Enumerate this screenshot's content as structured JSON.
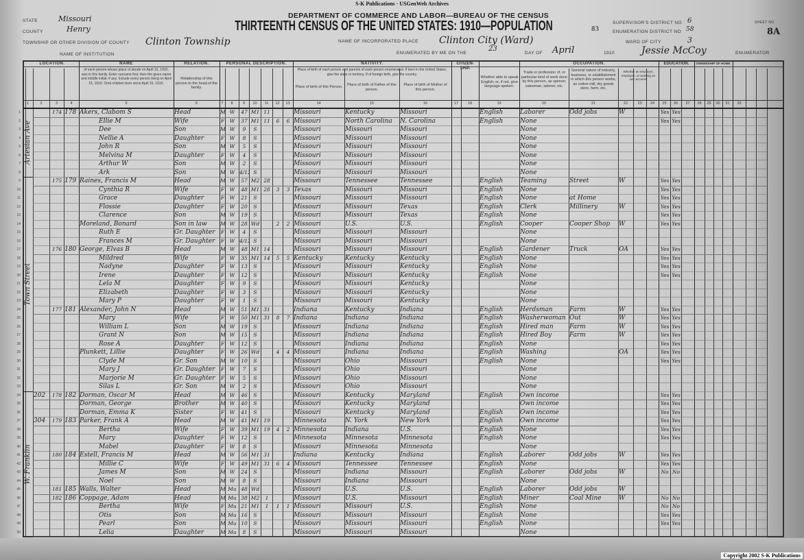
{
  "banner": "S-K Publications  ·  USGenWeb Archives",
  "form": {
    "department": "DEPARTMENT OF COMMERCE AND LABOR—BUREAU OF THE CENSUS",
    "title": "THIRTEENTH CENSUS OF THE UNITED STATES: 1910—POPULATION",
    "state_label": "STATE",
    "state": "Missouri",
    "county_label": "COUNTY",
    "county": "Henry",
    "township_label": "TOWNSHIP OR OTHER DIVISION OF COUNTY",
    "township": "Clinton Township",
    "institution_label": "NAME OF INSTITUTION",
    "incorporated_label": "NAME OF INCORPORATED PLACE",
    "incorporated_place": "Clinton City (Ward)",
    "supervisor_label": "SUPERVISOR'S DISTRICT NO",
    "supervisor_district": "6",
    "enumeration_label": "ENUMERATION DISTRICT NO",
    "enumeration_district": "58",
    "printed_code": "83",
    "sheet_label": "SHEET NO",
    "sheet": "8A",
    "ward_label": "WARD OF CITY",
    "ward": "3",
    "enumerated_label": "ENUMERATED BY ME ON THE",
    "day": "23",
    "day_of_label": "DAY OF",
    "month": "April",
    "year": "1910",
    "enumerator": "Jessie McCoy",
    "enumerator_label": "ENUMERATOR"
  },
  "header_groups": {
    "location": "LOCATION.",
    "name": "NAME",
    "name_desc": "of each person whose place of abode on April 15, 1910, was in this family. Enter surname first, then the given name and middle initial, if any. Include every person living on April 15, 1910. Omit children born since April 15, 1910.",
    "relation": "RELATION.",
    "relation_desc": "Relationship of this person to the head of the family.",
    "personal": "PERSONAL DESCRIPTION.",
    "nativity": "NATIVITY.",
    "nativity_desc": "Place of birth of each person and parents of each person enumerated. If born in the United States, give the state or territory. If of foreign birth, give the country.",
    "bp_person": "Place of birth of this Person.",
    "bp_father": "Place of birth of Father of this person.",
    "bp_mother": "Place of birth of Mother of this person.",
    "citizenship": "CITIZEN-SHIP.",
    "language": "Whether able to speak English; or, if not, give language spoken.",
    "occupation": "OCCUPATION.",
    "trade": "Trade or profession of, or particular kind of work done by this person, as spinner, salesman, laborer, etc.",
    "industry": "General nature of industry, business, or establishment in which this person works, as cotton mill, dry goods store, farm, etc.",
    "employer": "Whether an employer, employee, or working on own account.",
    "education": "EDUCATION.",
    "home": "OWNERSHIP OF HOME."
  },
  "column_numbers": [
    "1",
    "2",
    "3",
    "4",
    "5",
    "6",
    "7",
    "8",
    "9",
    "10",
    "11",
    "12",
    "13",
    "14",
    "15",
    "16",
    "17",
    "18",
    "19",
    "20",
    "21",
    "22",
    "23",
    "24",
    "25",
    "26",
    "27",
    "28",
    "29",
    "30",
    "31",
    "32"
  ],
  "street_labels": [
    "Artesian Ave",
    "Town Street",
    "W. Franklin"
  ],
  "rows": [
    [
      "",
      "174",
      "178",
      "Akers, Clabom S",
      "Head",
      "M",
      "W",
      "47",
      "M1",
      "11",
      "",
      "",
      "Missouri",
      "Kentucky",
      "Missouri",
      "English",
      "Laborer",
      "Odd jobs",
      "W",
      "Yes"
    ],
    [
      "",
      "",
      "",
      "Ellie M",
      "Wife",
      "F",
      "W",
      "37",
      "M1",
      "11",
      "6",
      "6",
      "Missouri",
      "North Carolina",
      "N. Carolina",
      "English",
      "None",
      "",
      "",
      "Yes"
    ],
    [
      "",
      "",
      "",
      "Dee",
      "Son",
      "M",
      "W",
      "9",
      "S",
      "",
      "",
      "",
      "Missouri",
      "Missouri",
      "Missouri",
      "",
      "None",
      "",
      "",
      ""
    ],
    [
      "",
      "",
      "",
      "Nellie A",
      "Daughter",
      "F",
      "W",
      "8",
      "S",
      "",
      "",
      "",
      "Missouri",
      "Missouri",
      "Missouri",
      "",
      "None",
      "",
      "",
      ""
    ],
    [
      "",
      "",
      "",
      "John R",
      "Son",
      "M",
      "W",
      "5",
      "S",
      "",
      "",
      "",
      "Missouri",
      "Missouri",
      "Missouri",
      "",
      "None",
      "",
      "",
      ""
    ],
    [
      "",
      "",
      "",
      "Melvina M",
      "Daughter",
      "F",
      "W",
      "4",
      "S",
      "",
      "",
      "",
      "Missouri",
      "Missouri",
      "Missouri",
      "",
      "None",
      "",
      "",
      ""
    ],
    [
      "",
      "",
      "",
      "Arthur W",
      "Son",
      "M",
      "W",
      "2",
      "S",
      "",
      "",
      "",
      "Missouri",
      "Missouri",
      "Missouri",
      "",
      "None",
      "",
      "",
      ""
    ],
    [
      "",
      "",
      "",
      "Ark",
      "Son",
      "M",
      "W",
      "4/12",
      "S",
      "",
      "",
      "",
      "Missouri",
      "Missouri",
      "Missouri",
      "",
      "None",
      "",
      "",
      ""
    ],
    [
      "",
      "175",
      "179",
      "Raines, Francis M",
      "Head",
      "M",
      "W",
      "57",
      "M2",
      "28",
      "",
      "",
      "Missouri",
      "Tennessee",
      "Tennessee",
      "English",
      "Teaming",
      "Street",
      "W",
      "Yes"
    ],
    [
      "",
      "",
      "",
      "Cynthia R",
      "Wife",
      "F",
      "W",
      "48",
      "M1",
      "28",
      "3",
      "3",
      "Texas",
      "Missouri",
      "Missouri",
      "English",
      "None",
      "",
      "",
      "Yes"
    ],
    [
      "",
      "",
      "",
      "Grace",
      "Daughter",
      "F",
      "W",
      "21",
      "S",
      "",
      "",
      "",
      "Missouri",
      "Missouri",
      "Missouri",
      "English",
      "None",
      "at Home",
      "",
      "Yes"
    ],
    [
      "",
      "",
      "",
      "Flossie",
      "Daughter",
      "F",
      "W",
      "20",
      "S",
      "",
      "",
      "",
      "Missouri",
      "Missouri",
      "Texas",
      "English",
      "Clerk",
      "Millinery",
      "W",
      "Yes"
    ],
    [
      "",
      "",
      "",
      "Clarence",
      "Son",
      "M",
      "W",
      "19",
      "S",
      "",
      "",
      "",
      "Missouri",
      "Missouri",
      "Texas",
      "English",
      "None",
      "",
      "",
      "Yes"
    ],
    [
      "",
      "",
      "",
      "Moreland, Bonard",
      "Son in law",
      "M",
      "W",
      "28",
      "Wd",
      "",
      "2",
      "2",
      "Missouri",
      "U.S.",
      "U.S.",
      "English",
      "Cooper",
      "Cooper Shop",
      "W",
      "Yes"
    ],
    [
      "",
      "",
      "",
      "Ruth E",
      "Gr. Daughter",
      "F",
      "W",
      "4",
      "S",
      "",
      "",
      "",
      "Missouri",
      "Missouri",
      "Missouri",
      "",
      "None",
      "",
      "",
      ""
    ],
    [
      "",
      "",
      "",
      "Frances M",
      "Gr. Daughter",
      "F",
      "W",
      "4/12",
      "S",
      "",
      "",
      "",
      "Missouri",
      "Missouri",
      "Missouri",
      "",
      "None",
      "",
      "",
      ""
    ],
    [
      "",
      "176",
      "180",
      "George, Elvas B",
      "Head",
      "M",
      "W",
      "48",
      "M1",
      "14",
      "",
      "",
      "Missouri",
      "Missouri",
      "Missouri",
      "English",
      "Gardener",
      "Truck",
      "OA",
      "Yes"
    ],
    [
      "",
      "",
      "",
      "Mildred",
      "Wife",
      "F",
      "W",
      "35",
      "M1",
      "14",
      "5",
      "5",
      "Kentucky",
      "Kentucky",
      "Kentucky",
      "English",
      "None",
      "",
      "",
      "Yes"
    ],
    [
      "",
      "",
      "",
      "Nadyne",
      "Daughter",
      "F",
      "W",
      "13",
      "S",
      "",
      "",
      "",
      "Missouri",
      "Missouri",
      "Kentucky",
      "English",
      "None",
      "",
      "",
      "Yes"
    ],
    [
      "",
      "",
      "",
      "Irene",
      "Daughter",
      "F",
      "W",
      "12",
      "S",
      "",
      "",
      "",
      "Missouri",
      "Missouri",
      "Kentucky",
      "English",
      "None",
      "",
      "",
      "Yes"
    ],
    [
      "",
      "",
      "",
      "Lela M",
      "Daughter",
      "F",
      "W",
      "9",
      "S",
      "",
      "",
      "",
      "Missouri",
      "Missouri",
      "Kentucky",
      "",
      "None",
      "",
      "",
      ""
    ],
    [
      "",
      "",
      "",
      "Elizabeth",
      "Daughter",
      "F",
      "W",
      "3",
      "S",
      "",
      "",
      "",
      "Missouri",
      "Missouri",
      "Kentucky",
      "",
      "None",
      "",
      "",
      ""
    ],
    [
      "",
      "",
      "",
      "Mary P",
      "Daughter",
      "F",
      "W",
      "1",
      "S",
      "",
      "",
      "",
      "Missouri",
      "Missouri",
      "Kentucky",
      "",
      "None",
      "",
      "",
      ""
    ],
    [
      "",
      "177",
      "181",
      "Alexander, John N",
      "Head",
      "M",
      "W",
      "51",
      "M1",
      "31",
      "",
      "",
      "Indiana",
      "Kentucky",
      "Indiana",
      "English",
      "Herdsman",
      "Farm",
      "W",
      "Yes"
    ],
    [
      "",
      "",
      "",
      "Mary",
      "Wife",
      "F",
      "W",
      "50",
      "M1",
      "31",
      "8",
      "7",
      "Indiana",
      "Indiana",
      "Indiana",
      "English",
      "Washerwoman",
      "Out",
      "W",
      "Yes"
    ],
    [
      "",
      "",
      "",
      "William L",
      "Son",
      "M",
      "W",
      "19",
      "S",
      "",
      "",
      "",
      "Missouri",
      "Indiana",
      "Indiana",
      "English",
      "Hired man",
      "Farm",
      "W",
      "Yes"
    ],
    [
      "",
      "",
      "",
      "Grant N",
      "Son",
      "M",
      "W",
      "15",
      "S",
      "",
      "",
      "",
      "Missouri",
      "Indiana",
      "Indiana",
      "English",
      "Hired Boy",
      "Farm",
      "W",
      "Yes"
    ],
    [
      "",
      "",
      "",
      "Rose A",
      "Daughter",
      "F",
      "W",
      "12",
      "S",
      "",
      "",
      "",
      "Missouri",
      "Indiana",
      "Indiana",
      "English",
      "None",
      "",
      "",
      "Yes"
    ],
    [
      "",
      "",
      "",
      "Plunkett, Lillie",
      "Daughter",
      "F",
      "W",
      "26",
      "Wd",
      "",
      "4",
      "4",
      "Missouri",
      "Indiana",
      "Indiana",
      "English",
      "Washing",
      "",
      "OA",
      "Yes"
    ],
    [
      "",
      "",
      "",
      "Clyde M",
      "Gr. Son",
      "M",
      "W",
      "10",
      "S",
      "",
      "",
      "",
      "Missouri",
      "Ohio",
      "Missouri",
      "English",
      "None",
      "",
      "",
      "Yes"
    ],
    [
      "",
      "",
      "",
      "Mary J",
      "Gr. Daughter",
      "F",
      "W",
      "7",
      "S",
      "",
      "",
      "",
      "Missouri",
      "Ohio",
      "Missouri",
      "",
      "None",
      "",
      "",
      ""
    ],
    [
      "",
      "",
      "",
      "Marjorie M",
      "Gr. Daughter",
      "F",
      "W",
      "5",
      "S",
      "",
      "",
      "",
      "Missouri",
      "Ohio",
      "Missouri",
      "",
      "None",
      "",
      "",
      ""
    ],
    [
      "",
      "",
      "",
      "Silas L",
      "Gr. Son",
      "M",
      "W",
      "2",
      "S",
      "",
      "",
      "",
      "Missouri",
      "Ohio",
      "Missouri",
      "",
      "None",
      "",
      "",
      ""
    ],
    [
      "202",
      "178",
      "182",
      "Dorman, Oscar M",
      "Head",
      "M",
      "W",
      "46",
      "S",
      "",
      "",
      "",
      "Missouri",
      "Kentucky",
      "Maryland",
      "English",
      "Own income",
      "",
      "",
      "Yes"
    ],
    [
      "",
      "",
      "",
      "Dorman, George",
      "Brother",
      "M",
      "W",
      "40",
      "S",
      "",
      "",
      "",
      "Missouri",
      "Kentucky",
      "Maryland",
      "",
      "Own income",
      "",
      "",
      "Yes"
    ],
    [
      "",
      "",
      "",
      "Dorman, Emma K",
      "Sister",
      "F",
      "W",
      "41",
      "S",
      "",
      "",
      "",
      "Missouri",
      "Kentucky",
      "Maryland",
      "English",
      "Own income",
      "",
      "",
      "Yes"
    ],
    [
      "304",
      "179",
      "183",
      "Parker, Frank A",
      "Head",
      "M",
      "W",
      "41",
      "M1",
      "19",
      "",
      "",
      "Minnesota",
      "N. York",
      "New York",
      "English",
      "Own income",
      "",
      "",
      "Yes"
    ],
    [
      "",
      "",
      "",
      "Bertha",
      "Wife",
      "F",
      "W",
      "39",
      "M1",
      "19",
      "4",
      "2",
      "Minnesota",
      "Indiana",
      "U.S.",
      "English",
      "None",
      "",
      "",
      "Yes"
    ],
    [
      "",
      "",
      "",
      "Mary",
      "Daughter",
      "F",
      "W",
      "12",
      "S",
      "",
      "",
      "",
      "Minnesota",
      "Minnesota",
      "Minnesota",
      "English",
      "None",
      "",
      "",
      "Yes"
    ],
    [
      "",
      "",
      "",
      "Mabel",
      "Daughter",
      "F",
      "W",
      "8",
      "S",
      "",
      "",
      "",
      "Missouri",
      "Minnesota",
      "Minnesota",
      "",
      "None",
      "",
      "",
      ""
    ],
    [
      "",
      "180",
      "184",
      "Estell, Francis M",
      "Head",
      "M",
      "W",
      "56",
      "M1",
      "31",
      "",
      "",
      "Indiana",
      "Kentucky",
      "Indiana",
      "English",
      "Laborer",
      "Odd jobs",
      "W",
      "Yes"
    ],
    [
      "",
      "",
      "",
      "Millie C",
      "Wife",
      "F",
      "W",
      "49",
      "M1",
      "31",
      "6",
      "4",
      "Missouri",
      "Tennessee",
      "Tennessee",
      "English",
      "None",
      "",
      "",
      "Yes"
    ],
    [
      "",
      "",
      "",
      "James M",
      "Son",
      "M",
      "W",
      "24",
      "S",
      "",
      "",
      "",
      "Missouri",
      "Indiana",
      "Missouri",
      "English",
      "Laborer",
      "Odd jobs",
      "W",
      "No"
    ],
    [
      "",
      "",
      "",
      "Noel",
      "Son",
      "M",
      "W",
      "8",
      "S",
      "",
      "",
      "",
      "Missouri",
      "Indiana",
      "Missouri",
      "",
      "None",
      "",
      "",
      ""
    ],
    [
      "",
      "181",
      "185",
      "Walls, Walter",
      "Head",
      "M",
      "Mu",
      "48",
      "Wd",
      "",
      "",
      "",
      "Missouri",
      "U.S.",
      "U.S.",
      "English",
      "Laborer",
      "Odd jobs",
      "W",
      ""
    ],
    [
      "",
      "182",
      "186",
      "Coppage, Adam",
      "Head",
      "M",
      "Mu",
      "38",
      "M2",
      "1",
      "",
      "",
      "Missouri",
      "U.S.",
      "Missouri",
      "English",
      "Miner",
      "Coal Mine",
      "W",
      "No"
    ],
    [
      "",
      "",
      "",
      "Bertha",
      "Wife",
      "F",
      "Mu",
      "21",
      "M1",
      "1",
      "1",
      "1",
      "Missouri",
      "Missouri",
      "U.S.",
      "English",
      "None",
      "",
      "",
      "No"
    ],
    [
      "",
      "",
      "",
      "Otis",
      "Son",
      "M",
      "Mu",
      "16",
      "S",
      "",
      "",
      "",
      "Missouri",
      "Missouri",
      "Missouri",
      "English",
      "None",
      "",
      "",
      "Yes"
    ],
    [
      "",
      "",
      "",
      "Pearl",
      "Son",
      "M",
      "Mu",
      "10",
      "S",
      "",
      "",
      "",
      "Missouri",
      "Missouri",
      "Missouri",
      "English",
      "None",
      "",
      "",
      "Yes"
    ],
    [
      "",
      "",
      "",
      "Lelia",
      "Daughter",
      "M",
      "Mu",
      "8",
      "S",
      "",
      "",
      "",
      "Missouri",
      "Missouri",
      "Missouri",
      "",
      "None",
      "",
      "",
      ""
    ]
  ],
  "copyright": "Copyright 2002 S-K Publications"
}
